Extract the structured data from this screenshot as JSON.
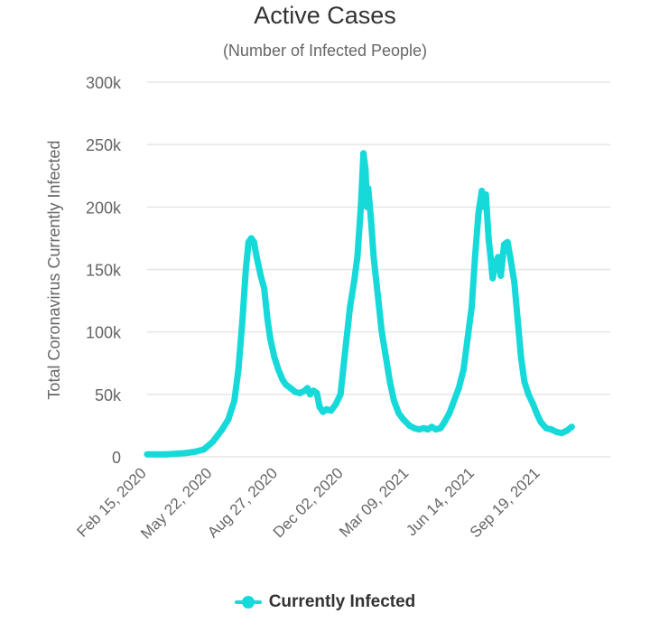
{
  "chart_data": {
    "type": "line",
    "title": "Active Cases",
    "subtitle": "(Number of Infected People)",
    "ylabel": "Total Coronavirus Currently Infected",
    "xlabel": "",
    "ylim": [
      0,
      300000
    ],
    "y_ticks": [
      0,
      50000,
      100000,
      150000,
      200000,
      250000,
      300000
    ],
    "y_tick_labels": [
      "0",
      "50k",
      "100k",
      "150k",
      "200k",
      "250k",
      "300k"
    ],
    "x_range": [
      "2020-02-15",
      "2021-12-31"
    ],
    "x_ticks": [
      "2020-02-15",
      "2020-05-22",
      "2020-08-27",
      "2020-12-02",
      "2021-03-09",
      "2021-06-14",
      "2021-09-19"
    ],
    "x_tick_labels": [
      "Feb 15, 2020",
      "May 22, 2020",
      "Aug 27, 2020",
      "Dec 02, 2020",
      "Mar 09, 2021",
      "Jun 14, 2021",
      "Sep 19, 2021"
    ],
    "grid": true,
    "legend_position": "bottom",
    "color": "#16d9d9",
    "series": [
      {
        "name": "Currently Infected",
        "points": [
          [
            "2020-02-15",
            2000
          ],
          [
            "2020-03-14",
            2000
          ],
          [
            "2020-04-11",
            3000
          ],
          [
            "2020-04-25",
            4000
          ],
          [
            "2020-05-09",
            6000
          ],
          [
            "2020-05-22",
            12000
          ],
          [
            "2020-06-05",
            22000
          ],
          [
            "2020-06-14",
            30000
          ],
          [
            "2020-06-23",
            45000
          ],
          [
            "2020-06-29",
            70000
          ],
          [
            "2020-07-05",
            110000
          ],
          [
            "2020-07-10",
            150000
          ],
          [
            "2020-07-14",
            172000
          ],
          [
            "2020-07-18",
            175000
          ],
          [
            "2020-07-22",
            172000
          ],
          [
            "2020-07-26",
            160000
          ],
          [
            "2020-08-01",
            145000
          ],
          [
            "2020-08-06",
            135000
          ],
          [
            "2020-08-11",
            110000
          ],
          [
            "2020-08-15",
            95000
          ],
          [
            "2020-08-21",
            80000
          ],
          [
            "2020-08-27",
            70000
          ],
          [
            "2020-09-02",
            62000
          ],
          [
            "2020-09-07",
            58000
          ],
          [
            "2020-09-14",
            55000
          ],
          [
            "2020-09-21",
            52000
          ],
          [
            "2020-09-28",
            51000
          ],
          [
            "2020-10-05",
            53000
          ],
          [
            "2020-10-09",
            55000
          ],
          [
            "2020-10-13",
            50000
          ],
          [
            "2020-10-18",
            53000
          ],
          [
            "2020-10-23",
            51000
          ],
          [
            "2020-10-27",
            40000
          ],
          [
            "2020-11-01",
            36000
          ],
          [
            "2020-11-06",
            38000
          ],
          [
            "2020-11-13",
            37000
          ],
          [
            "2020-11-20",
            42000
          ],
          [
            "2020-11-27",
            50000
          ],
          [
            "2020-12-02",
            75000
          ],
          [
            "2020-12-07",
            100000
          ],
          [
            "2020-12-11",
            120000
          ],
          [
            "2020-12-17",
            140000
          ],
          [
            "2020-12-22",
            160000
          ],
          [
            "2020-12-27",
            200000
          ],
          [
            "2020-12-31",
            243000
          ],
          [
            "2021-01-03",
            230000
          ],
          [
            "2021-01-05",
            200000
          ],
          [
            "2021-01-07",
            215000
          ],
          [
            "2021-01-11",
            190000
          ],
          [
            "2021-01-15",
            160000
          ],
          [
            "2021-01-21",
            130000
          ],
          [
            "2021-01-27",
            100000
          ],
          [
            "2021-02-02",
            80000
          ],
          [
            "2021-02-08",
            60000
          ],
          [
            "2021-02-14",
            45000
          ],
          [
            "2021-02-21",
            35000
          ],
          [
            "2021-02-28",
            30000
          ],
          [
            "2021-03-09",
            25000
          ],
          [
            "2021-03-16",
            23000
          ],
          [
            "2021-03-23",
            22000
          ],
          [
            "2021-03-30",
            23000
          ],
          [
            "2021-04-05",
            22000
          ],
          [
            "2021-04-11",
            24000
          ],
          [
            "2021-04-17",
            22000
          ],
          [
            "2021-04-24",
            23000
          ],
          [
            "2021-04-30",
            28000
          ],
          [
            "2021-05-07",
            35000
          ],
          [
            "2021-05-14",
            45000
          ],
          [
            "2021-05-21",
            55000
          ],
          [
            "2021-05-28",
            70000
          ],
          [
            "2021-06-03",
            95000
          ],
          [
            "2021-06-09",
            120000
          ],
          [
            "2021-06-14",
            160000
          ],
          [
            "2021-06-19",
            195000
          ],
          [
            "2021-06-24",
            213000
          ],
          [
            "2021-06-27",
            200000
          ],
          [
            "2021-06-30",
            210000
          ],
          [
            "2021-07-04",
            175000
          ],
          [
            "2021-07-07",
            160000
          ],
          [
            "2021-07-10",
            143000
          ],
          [
            "2021-07-14",
            155000
          ],
          [
            "2021-07-18",
            160000
          ],
          [
            "2021-07-22",
            145000
          ],
          [
            "2021-07-27",
            170000
          ],
          [
            "2021-08-01",
            172000
          ],
          [
            "2021-08-05",
            160000
          ],
          [
            "2021-08-11",
            140000
          ],
          [
            "2021-08-16",
            110000
          ],
          [
            "2021-08-21",
            80000
          ],
          [
            "2021-08-26",
            60000
          ],
          [
            "2021-09-01",
            50000
          ],
          [
            "2021-09-08",
            42000
          ],
          [
            "2021-09-13",
            35000
          ],
          [
            "2021-09-19",
            28000
          ],
          [
            "2021-09-27",
            23000
          ],
          [
            "2021-10-05",
            22000
          ],
          [
            "2021-10-12",
            20000
          ],
          [
            "2021-10-20",
            19000
          ],
          [
            "2021-10-28",
            21000
          ],
          [
            "2021-11-04",
            24000
          ]
        ]
      }
    ]
  }
}
